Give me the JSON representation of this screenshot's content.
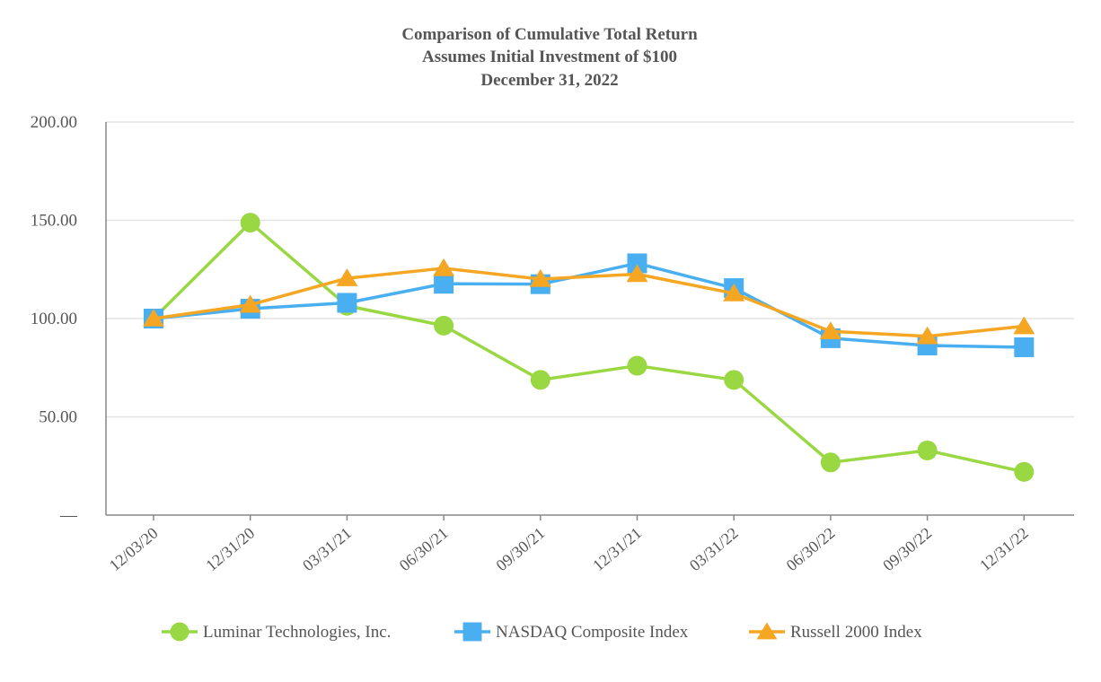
{
  "chart_data": {
    "type": "line",
    "title": [
      "Comparison of Cumulative Total Return",
      "Assumes Initial Investment of $100",
      "December 31, 2022"
    ],
    "xlabel": "",
    "ylabel": "",
    "categories": [
      "12/03/20",
      "12/31/20",
      "03/31/21",
      "06/30/21",
      "09/30/21",
      "12/31/21",
      "03/31/22",
      "06/30/22",
      "09/30/22",
      "12/31/22"
    ],
    "ylim": [
      0,
      200
    ],
    "yticks": [
      {
        "value": 0,
        "label": "—"
      },
      {
        "value": 50,
        "label": "50.00"
      },
      {
        "value": 100,
        "label": "100.00"
      },
      {
        "value": 150,
        "label": "150.00"
      },
      {
        "value": 200,
        "label": "200.00"
      }
    ],
    "grid": true,
    "legend_position": "bottom",
    "series": [
      {
        "name": "Luminar Technologies, Inc.",
        "color": "#99d842",
        "marker": "circle",
        "values": [
          100.0,
          148.8,
          106.5,
          96.4,
          68.8,
          76.0,
          68.8,
          26.8,
          32.9,
          22.0
        ]
      },
      {
        "name": "NASDAQ Composite Index",
        "color": "#4aaff0",
        "marker": "square",
        "values": [
          100.0,
          105.0,
          108.0,
          117.7,
          117.5,
          128.1,
          115.5,
          90.0,
          86.3,
          85.4
        ]
      },
      {
        "name": "Russell 2000 Index",
        "color": "#f5a623",
        "marker": "triangle",
        "values": [
          100.0,
          107.0,
          120.5,
          125.6,
          120.1,
          122.6,
          112.8,
          93.5,
          91.0,
          96.1
        ]
      }
    ]
  }
}
